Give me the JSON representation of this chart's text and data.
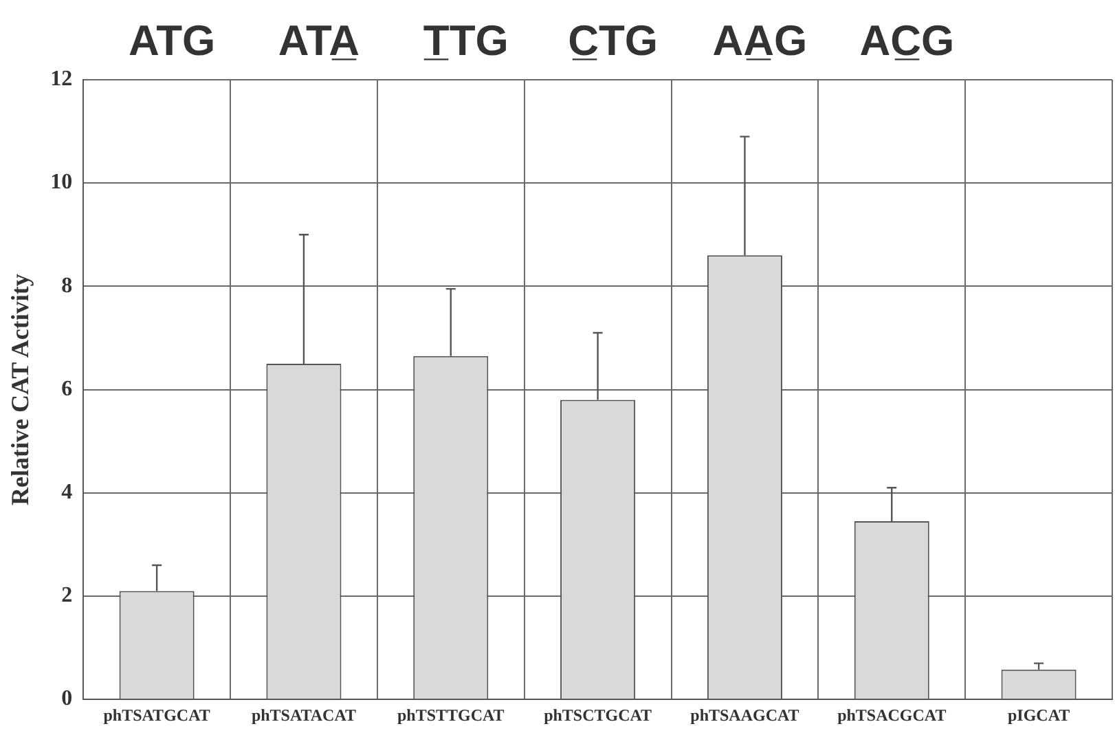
{
  "chart_data": {
    "type": "bar",
    "annotations": [
      "ATG",
      "ATA̲",
      "T̲TG",
      "C̲TG",
      "AA̲G",
      "AC̲G"
    ],
    "ylabel": "Relative CAT Activity",
    "categories": [
      "phTSATGCAT",
      "phTSATACAT",
      "phTSTTGCAT",
      "phTSCTGCAT",
      "phTSAAGCAT",
      "phTSACGCAT",
      "pIGCAT"
    ],
    "values": [
      2.1,
      6.5,
      6.65,
      5.8,
      8.6,
      3.45,
      0.58
    ],
    "errors": [
      [
        2.1,
        2.6
      ],
      [
        6.5,
        9.0
      ],
      [
        6.65,
        7.95
      ],
      [
        5.8,
        7.1
      ],
      [
        8.6,
        10.9
      ],
      [
        3.45,
        4.1
      ],
      [
        0.58,
        0.7
      ]
    ],
    "color": "#d9d9d9",
    "ylim": [
      0,
      12
    ],
    "yticks": [
      0,
      2,
      4,
      6,
      8,
      10,
      12
    ],
    "grid": true
  }
}
